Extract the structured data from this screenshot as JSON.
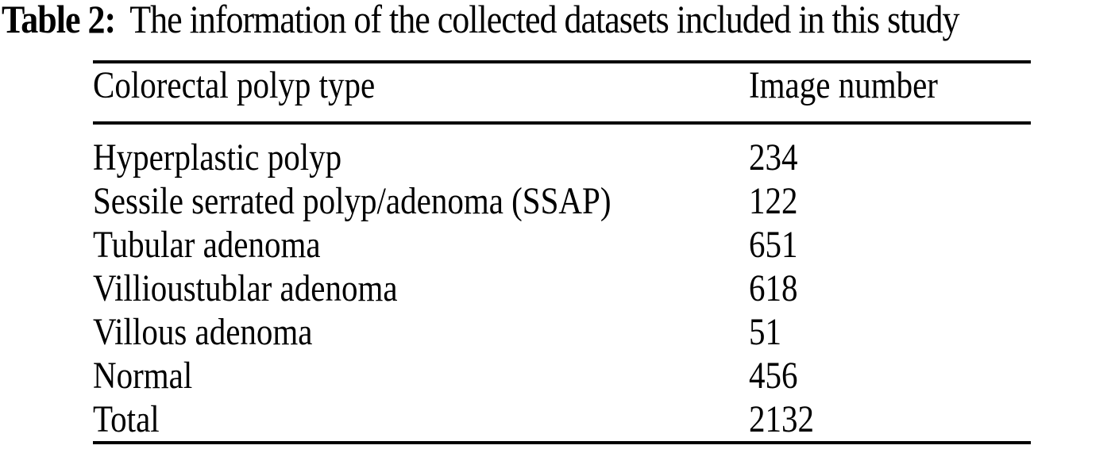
{
  "colors": {
    "background": "#ffffff",
    "text": "#000000",
    "rule": "#000000"
  },
  "caption": {
    "label": "Table 2:",
    "text": "The information of the collected datasets included in this study"
  },
  "table": {
    "columns": [
      "Colorectal polyp type",
      "Image number"
    ],
    "rows": [
      {
        "type": "Hyperplastic polyp",
        "image_number": "234"
      },
      {
        "type": "Sessile serrated polyp/adenoma (SSAP)",
        "image_number": "122"
      },
      {
        "type": "Tubular adenoma",
        "image_number": "651"
      },
      {
        "type": "Villioustublar adenoma",
        "image_number": "618"
      },
      {
        "type": "Villous adenoma",
        "image_number": "51"
      },
      {
        "type": "Normal",
        "image_number": "456"
      },
      {
        "type": "Total",
        "image_number": "2132"
      }
    ]
  }
}
